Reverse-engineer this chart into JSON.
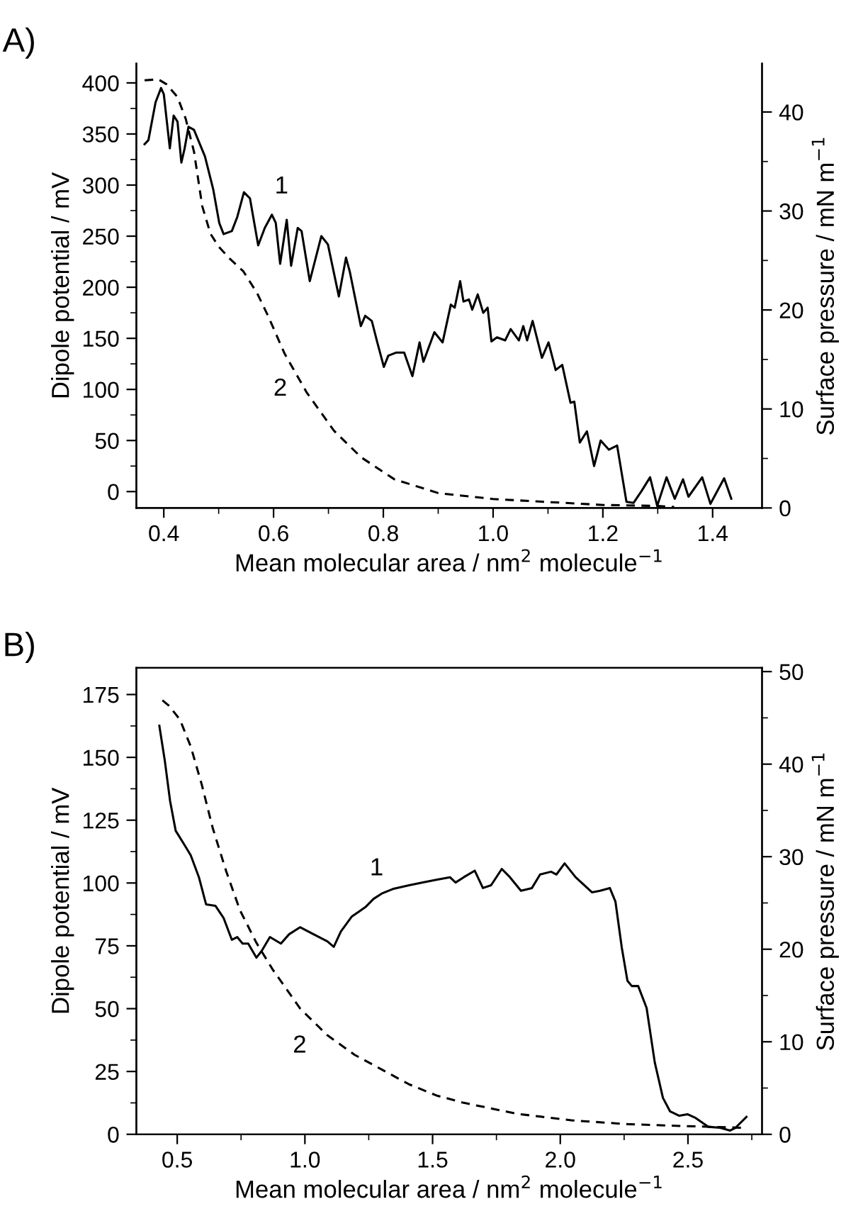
{
  "chart_data": [
    {
      "type": "line",
      "title": "A)",
      "xlabel": "Mean molecular area / nm$^{2}$ molecule$^{−1}$",
      "ylabel": "Dipole potential / mV",
      "y2label": "Surface pressure / mN m$^{−1}$",
      "xlim": [
        0.35,
        1.49
      ],
      "ylim": [
        -16,
        419
      ],
      "y2lim": [
        0,
        44.9
      ],
      "xticks": [
        0.4,
        0.6,
        0.8,
        {
          "value": 1,
          "label": "1.0"
        },
        1.2,
        1.4,
        {
          "value": 0.5,
          "label": null
        },
        {
          "value": 0.7,
          "label": null
        },
        {
          "value": 0.9,
          "label": null
        },
        {
          "value": 1.1,
          "label": null
        },
        {
          "value": 1.3,
          "label": null
        }
      ],
      "yticks": [
        0,
        50,
        100,
        150,
        200,
        250,
        300,
        350,
        400,
        {
          "value": 25,
          "label": null
        },
        {
          "value": 75,
          "label": null
        },
        {
          "value": 125,
          "label": null
        },
        {
          "value": 175,
          "label": null
        },
        {
          "value": 225,
          "label": null
        },
        {
          "value": 275,
          "label": null
        },
        {
          "value": 325,
          "label": null
        },
        {
          "value": 375,
          "label": null
        }
      ],
      "y2ticks": [
        0,
        10,
        20,
        30,
        40,
        {
          "value": 5,
          "label": null
        },
        {
          "value": 15,
          "label": null
        },
        {
          "value": 25,
          "label": null
        },
        {
          "value": 35,
          "label": null
        }
      ],
      "grid": false,
      "legend": false,
      "series": [
        {
          "color": "#000000",
          "line_style": "solid",
          "x": [
            0.365,
            0.372,
            0.385,
            0.395,
            0.4,
            0.411,
            0.418,
            0.425,
            0.432,
            0.438,
            0.445,
            0.455,
            0.475,
            0.49,
            0.501,
            0.509,
            0.524,
            0.534,
            0.546,
            0.557,
            0.572,
            0.584,
            0.597,
            0.604,
            0.612,
            0.624,
            0.632,
            0.644,
            0.651,
            0.666,
            0.687,
            0.699,
            0.719,
            0.732,
            0.739,
            0.759,
            0.767,
            0.779,
            0.789,
            0.801,
            0.809,
            0.823,
            0.838,
            0.853,
            0.866,
            0.873,
            0.893,
            0.908,
            0.923,
            0.93,
            0.94,
            0.946,
            0.956,
            0.962,
            0.972,
            0.982,
            0.99,
            0.997,
            1.007,
            1.022,
            1.032,
            1.047,
            1.055,
            1.062,
            1.072,
            1.089,
            1.101,
            1.114,
            1.126,
            1.141,
            1.148,
            1.158,
            1.171,
            1.184,
            1.196,
            1.211,
            1.226,
            1.243,
            1.256,
            1.271,
            1.286,
            1.299,
            1.316,
            1.331,
            1.346,
            1.356,
            1.381,
            1.396,
            1.421,
            1.434
          ],
          "values": [
            340,
            344,
            381,
            395,
            389,
            336,
            368,
            362,
            322,
            336,
            357,
            354,
            328,
            296,
            263,
            252,
            255,
            269,
            293,
            287,
            241,
            258,
            271,
            263,
            223,
            266,
            221,
            258,
            255,
            206,
            250,
            242,
            191,
            229,
            215,
            162,
            172,
            167,
            146,
            122,
            133,
            136,
            136,
            113,
            146,
            127,
            156,
            146,
            183,
            180,
            206,
            186,
            188,
            178,
            193,
            175,
            180,
            147,
            151,
            148,
            159,
            148,
            162,
            148,
            167,
            131,
            146,
            119,
            124,
            87,
            88,
            48,
            59,
            25,
            50,
            41,
            45,
            -10,
            -11,
            1,
            14,
            -14,
            14,
            -7,
            12,
            -5,
            14,
            -12,
            13,
            -7
          ]
        },
        {
          "color": "#000000",
          "line_style": "dashed",
          "axis": "y2",
          "x": [
            0.365,
            0.39,
            0.405,
            0.425,
            0.44,
            0.455,
            0.47,
            0.485,
            0.5,
            0.52,
            0.545,
            0.57,
            0.59,
            0.62,
            0.66,
            0.71,
            0.76,
            0.82,
            0.9,
            1.0,
            1.1,
            1.2,
            1.3,
            1.33
          ],
          "values": [
            43.2,
            43.3,
            42.8,
            41.5,
            39.3,
            36.0,
            30.5,
            27.7,
            26.4,
            25.2,
            23.9,
            21.7,
            19.4,
            15.6,
            11.7,
            7.8,
            5.1,
            2.9,
            1.5,
            0.9,
            0.6,
            0.3,
            0.2,
            0.1
          ]
        }
      ],
      "annotations": [
        "1",
        "2"
      ]
    },
    {
      "type": "line",
      "title": "B)",
      "xlabel": "Mean molecular area / nm$^{2}$ molecule$^{−1}$",
      "ylabel": "Dipole potential / mV",
      "y2label": "Surface pressure / mN m$^{−1}$",
      "xlim": [
        0.34,
        2.79
      ],
      "ylim": [
        0,
        185.6
      ],
      "y2lim": [
        0,
        50.4
      ],
      "xticks": [
        0.5,
        {
          "value": 1,
          "label": "1.0"
        },
        1.5,
        {
          "value": 2,
          "label": "2.0"
        },
        2.5,
        {
          "value": 0.75,
          "label": null
        },
        {
          "value": 1.25,
          "label": null
        },
        {
          "value": 1.75,
          "label": null
        },
        {
          "value": 2.25,
          "label": null
        },
        {
          "value": 2.75,
          "label": null
        }
      ],
      "yticks": [
        0,
        25,
        50,
        75,
        100,
        125,
        150,
        175,
        {
          "value": 12.5,
          "label": null
        },
        {
          "value": 37.5,
          "label": null
        },
        {
          "value": 62.5,
          "label": null
        },
        {
          "value": 87.5,
          "label": null
        },
        {
          "value": 112.5,
          "label": null
        },
        {
          "value": 137.5,
          "label": null
        },
        {
          "value": 162.5,
          "label": null
        }
      ],
      "y2ticks": [
        0,
        10,
        20,
        30,
        40,
        50,
        {
          "value": 5,
          "label": null
        },
        {
          "value": 15,
          "label": null
        },
        {
          "value": 25,
          "label": null
        },
        {
          "value": 35,
          "label": null
        },
        {
          "value": 45,
          "label": null
        }
      ],
      "grid": false,
      "legend": false,
      "series": [
        {
          "color": "#000000",
          "line_style": "solid",
          "x": [
            0.43,
            0.451,
            0.472,
            0.494,
            0.521,
            0.553,
            0.585,
            0.613,
            0.65,
            0.682,
            0.714,
            0.735,
            0.756,
            0.778,
            0.81,
            0.831,
            0.863,
            0.906,
            0.938,
            0.981,
            1.034,
            1.088,
            1.113,
            1.141,
            1.184,
            1.237,
            1.269,
            1.301,
            1.344,
            1.408,
            1.462,
            1.515,
            1.568,
            1.59,
            1.622,
            1.665,
            1.697,
            1.729,
            1.771,
            1.803,
            1.846,
            1.889,
            1.921,
            1.964,
            1.985,
            2.017,
            2.06,
            2.124,
            2.156,
            2.194,
            2.216,
            2.241,
            2.263,
            2.28,
            2.305,
            2.338,
            2.37,
            2.402,
            2.43,
            2.466,
            2.498,
            2.53,
            2.579,
            2.626,
            2.665,
            2.686,
            2.729
          ],
          "values": [
            162.6,
            149,
            132.7,
            120.8,
            116.4,
            111,
            102.3,
            91.5,
            90.9,
            86,
            77.4,
            78.5,
            75.9,
            75.9,
            70.3,
            73,
            78.5,
            75.9,
            79.6,
            82.4,
            79.6,
            76.8,
            74.6,
            80.7,
            86.7,
            90.4,
            93.7,
            95.8,
            97.6,
            99.1,
            100.2,
            101.3,
            102.3,
            100.2,
            102.3,
            104.9,
            98,
            99.1,
            105.6,
            102.3,
            96.9,
            98,
            103.4,
            104.5,
            103.4,
            107.8,
            102.3,
            96.3,
            96.9,
            98,
            92.6,
            74.2,
            61.1,
            59,
            59,
            50.3,
            28.6,
            14.5,
            9.1,
            7.4,
            8,
            6.5,
            3,
            2.6,
            1.5,
            2.6,
            6.9
          ]
        },
        {
          "color": "#000000",
          "line_style": "dashed",
          "axis": "y2",
          "x": [
            0.442,
            0.468,
            0.511,
            0.553,
            0.596,
            0.639,
            0.692,
            0.746,
            0.81,
            0.874,
            0.981,
            1.088,
            1.194,
            1.301,
            1.408,
            1.515,
            1.622,
            1.835,
            2.049,
            2.263,
            2.476,
            2.72
          ],
          "values": [
            46.9,
            46.3,
            44.8,
            41.9,
            37.8,
            33.1,
            28.4,
            24.2,
            20.7,
            17.8,
            13.6,
            10.7,
            8.6,
            7.0,
            5.4,
            4.2,
            3.4,
            2.2,
            1.5,
            1.1,
            0.9,
            0.7
          ]
        }
      ],
      "annotations": [
        "1",
        "2"
      ]
    }
  ]
}
